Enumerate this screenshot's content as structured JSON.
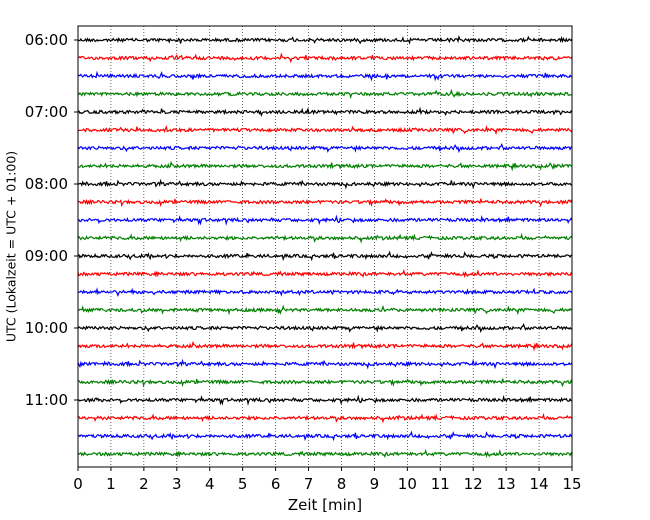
{
  "chart_data": {
    "type": "line",
    "title": "",
    "xlabel": "Zeit  [min]",
    "ylabel": "UTC (Lokalzeit = UTC + 01:00)",
    "xlim": [
      0,
      15
    ],
    "x_ticks": [
      "0",
      "1",
      "2",
      "3",
      "4",
      "5",
      "6",
      "7",
      "8",
      "9",
      "10",
      "11",
      "12",
      "13",
      "14",
      "15"
    ],
    "y_tick_labels": [
      "06:00",
      "07:00",
      "08:00",
      "09:00",
      "10:00",
      "11:00"
    ],
    "grid": {
      "x": true,
      "style": "dotted"
    },
    "trace_colors": [
      "#000000",
      "#ff0000",
      "#0000ff",
      "#008000"
    ],
    "series": [
      {
        "start": "06:00",
        "color": "#000000"
      },
      {
        "start": "06:15",
        "color": "#ff0000"
      },
      {
        "start": "06:30",
        "color": "#0000ff"
      },
      {
        "start": "06:45",
        "color": "#008000"
      },
      {
        "start": "07:00",
        "color": "#000000"
      },
      {
        "start": "07:15",
        "color": "#ff0000"
      },
      {
        "start": "07:30",
        "color": "#0000ff"
      },
      {
        "start": "07:45",
        "color": "#008000"
      },
      {
        "start": "08:00",
        "color": "#000000"
      },
      {
        "start": "08:15",
        "color": "#ff0000"
      },
      {
        "start": "08:30",
        "color": "#0000ff"
      },
      {
        "start": "08:45",
        "color": "#008000"
      },
      {
        "start": "09:00",
        "color": "#000000"
      },
      {
        "start": "09:15",
        "color": "#ff0000"
      },
      {
        "start": "09:30",
        "color": "#0000ff"
      },
      {
        "start": "09:45",
        "color": "#008000"
      },
      {
        "start": "10:00",
        "color": "#000000"
      },
      {
        "start": "10:15",
        "color": "#ff0000"
      },
      {
        "start": "10:30",
        "color": "#0000ff"
      },
      {
        "start": "10:45",
        "color": "#008000"
      },
      {
        "start": "11:00",
        "color": "#000000"
      },
      {
        "start": "11:15",
        "color": "#ff0000"
      },
      {
        "start": "11:30",
        "color": "#0000ff"
      },
      {
        "start": "11:45",
        "color": "#008000"
      }
    ]
  }
}
